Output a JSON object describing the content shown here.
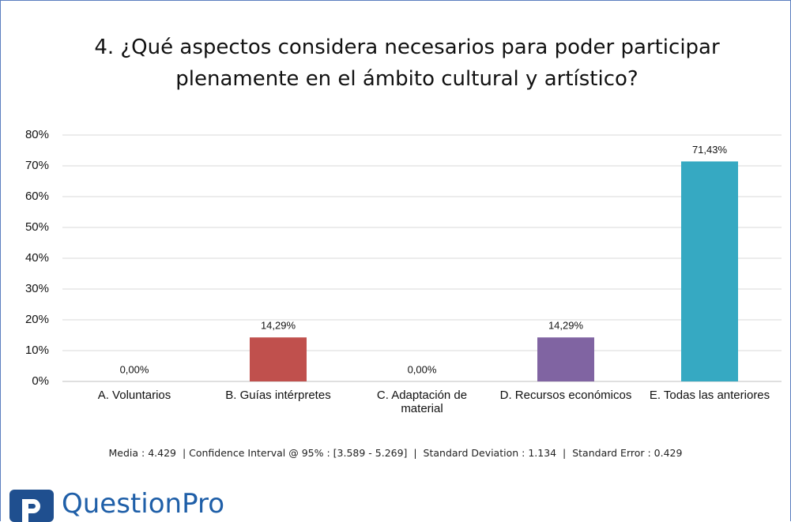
{
  "chart_data": {
    "type": "bar",
    "title": "4. ¿Qué aspectos considera necesarios para poder participar plenamente en el ámbito cultural y artístico?",
    "categories": [
      "A. Voluntarios",
      "B. Guías intérpretes",
      "C. Adaptación de material",
      "D. Recursos económicos",
      "E. Todas las anteriores"
    ],
    "values": [
      0,
      14.29,
      0,
      14.29,
      71.43
    ],
    "value_labels": [
      "0,00%",
      "14,29%",
      "0,00%",
      "14,29%",
      "71,43%"
    ],
    "colors": [
      "#4472c4",
      "#c0504d",
      "#9bbb59",
      "#8064a2",
      "#36a9c2"
    ],
    "ylim": [
      0,
      80
    ],
    "yticks": [
      {
        "value": 0,
        "label": "0%"
      },
      {
        "value": 10,
        "label": "10%"
      },
      {
        "value": 20,
        "label": "20%"
      },
      {
        "value": 30,
        "label": "30%"
      },
      {
        "value": 40,
        "label": "40%"
      },
      {
        "value": 50,
        "label": "50%"
      },
      {
        "value": 60,
        "label": "60%"
      },
      {
        "value": 70,
        "label": "70%"
      },
      {
        "value": 80,
        "label": "80%"
      }
    ],
    "grid": true,
    "footnote": "Media : 4.429  | Confidence Interval @ 95% : [3.589 - 5.269]  |  Standard Deviation : 1.134  |  Standard Error : 0.429",
    "logo": "QuestionPro"
  }
}
